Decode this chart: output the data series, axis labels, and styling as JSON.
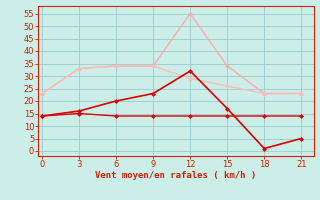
{
  "xlabel": "Vent moyen/en rafales ( km/h )",
  "x": [
    0,
    3,
    6,
    9,
    12,
    15,
    18,
    21
  ],
  "line1_y": [
    23,
    33,
    34,
    34,
    55,
    34,
    23,
    23
  ],
  "line2_y": [
    23,
    33,
    34,
    34,
    29,
    26,
    23,
    23
  ],
  "line3_y": [
    14,
    16,
    20,
    23,
    32,
    17,
    1,
    5
  ],
  "line4_y": [
    14,
    15,
    14,
    14,
    14,
    14,
    14,
    14
  ],
  "line1_color": "#ffaaaa",
  "line2_color": "#ffbbbb",
  "line3_color": "#dd0000",
  "line4_color": "#dd0000",
  "bg_color": "#cceee8",
  "grid_color": "#99cccc",
  "axis_color": "#cc2200",
  "ylim": [
    -2,
    58
  ],
  "yticks": [
    0,
    5,
    10,
    15,
    20,
    25,
    30,
    35,
    40,
    45,
    50,
    55
  ],
  "xticks": [
    0,
    3,
    6,
    9,
    12,
    15,
    18,
    21
  ],
  "xlim": [
    -0.3,
    22.0
  ]
}
